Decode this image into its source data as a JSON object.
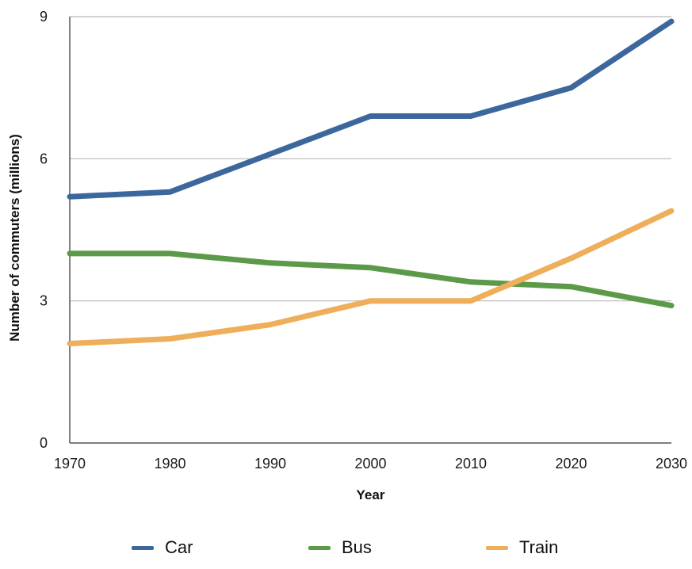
{
  "chart_data": {
    "type": "line",
    "title": "",
    "xlabel": "Year",
    "ylabel": "Number of commuters (millions)",
    "x": [
      1970,
      1980,
      1990,
      2000,
      2010,
      2020,
      2030
    ],
    "xlim": [
      1970,
      2030
    ],
    "ylim": [
      0,
      9
    ],
    "yticks": [
      0,
      3,
      6,
      9
    ],
    "grid": "horizontal",
    "legend_position": "bottom",
    "series": [
      {
        "name": "Car",
        "color": "#3c679d",
        "values": [
          5.2,
          5.3,
          6.1,
          6.9,
          6.9,
          7.5,
          8.9
        ]
      },
      {
        "name": "Bus",
        "color": "#5c9a4a",
        "values": [
          4.0,
          4.0,
          3.8,
          3.7,
          3.4,
          3.3,
          2.9
        ]
      },
      {
        "name": "Train",
        "color": "#eeae5a",
        "values": [
          2.1,
          2.2,
          2.5,
          3.0,
          3.0,
          3.9,
          4.9
        ]
      }
    ]
  }
}
